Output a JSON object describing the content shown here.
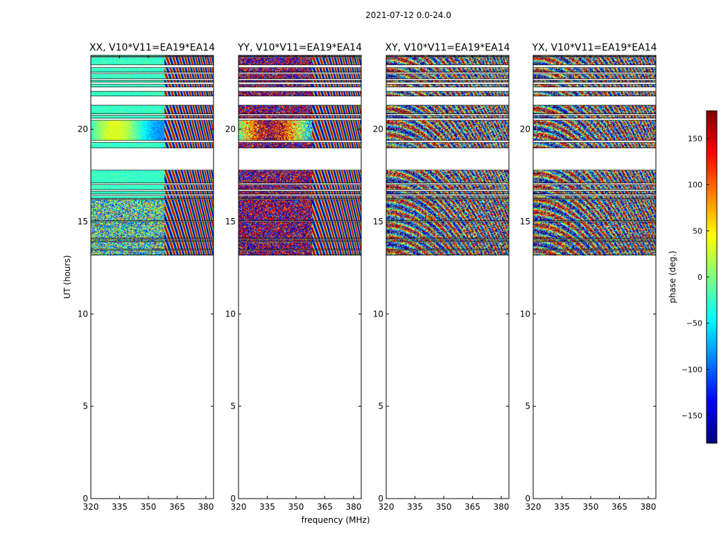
{
  "figure": {
    "suptitle": "2021-07-12 0.0-24.0"
  },
  "chart_data": {
    "type": "heatmap",
    "xlabel": "frequency (MHz)",
    "ylabel": "UT (hours)",
    "xlim": [
      320,
      384
    ],
    "ylim": [
      0,
      24
    ],
    "xticks": [
      "320",
      "335",
      "350",
      "365",
      "380"
    ],
    "yticks": [
      "0",
      "5",
      "10",
      "15",
      "20"
    ],
    "panels": [
      {
        "title": "XX, V10*V11=EA19*EA14",
        "style": "xx"
      },
      {
        "title": "YY, V10*V11=EA19*EA14",
        "style": "yy"
      },
      {
        "title": "XY, V10*V11=EA19*EA14",
        "style": "noise"
      },
      {
        "title": "YX, V10*V11=EA19*EA14",
        "style": "noise"
      }
    ],
    "data_blocks_ut": [
      [
        13.2,
        13.45
      ],
      [
        13.5,
        13.9
      ],
      [
        13.95,
        14.05
      ],
      [
        14.1,
        15.0
      ],
      [
        15.05,
        16.2
      ],
      [
        16.25,
        16.4
      ],
      [
        16.5,
        16.65
      ],
      [
        16.75,
        17.0
      ],
      [
        17.1,
        17.8
      ],
      [
        19.0,
        19.3
      ],
      [
        19.4,
        20.5
      ],
      [
        20.6,
        20.75
      ],
      [
        20.85,
        21.3
      ],
      [
        21.8,
        22.05
      ],
      [
        22.3,
        22.45
      ],
      [
        22.55,
        22.65
      ],
      [
        22.75,
        23.0
      ],
      [
        23.1,
        23.35
      ],
      [
        23.5,
        23.9
      ],
      [
        23.95,
        24.0
      ]
    ],
    "colorbar": {
      "label": "phase (deg.)",
      "range": [
        -180,
        180
      ],
      "ticks": [
        "150",
        "100",
        "50",
        "0",
        "−50",
        "−100",
        "−150"
      ],
      "tick_values": [
        150,
        100,
        50,
        0,
        -50,
        -100,
        -150
      ],
      "colormap": "jet"
    }
  }
}
